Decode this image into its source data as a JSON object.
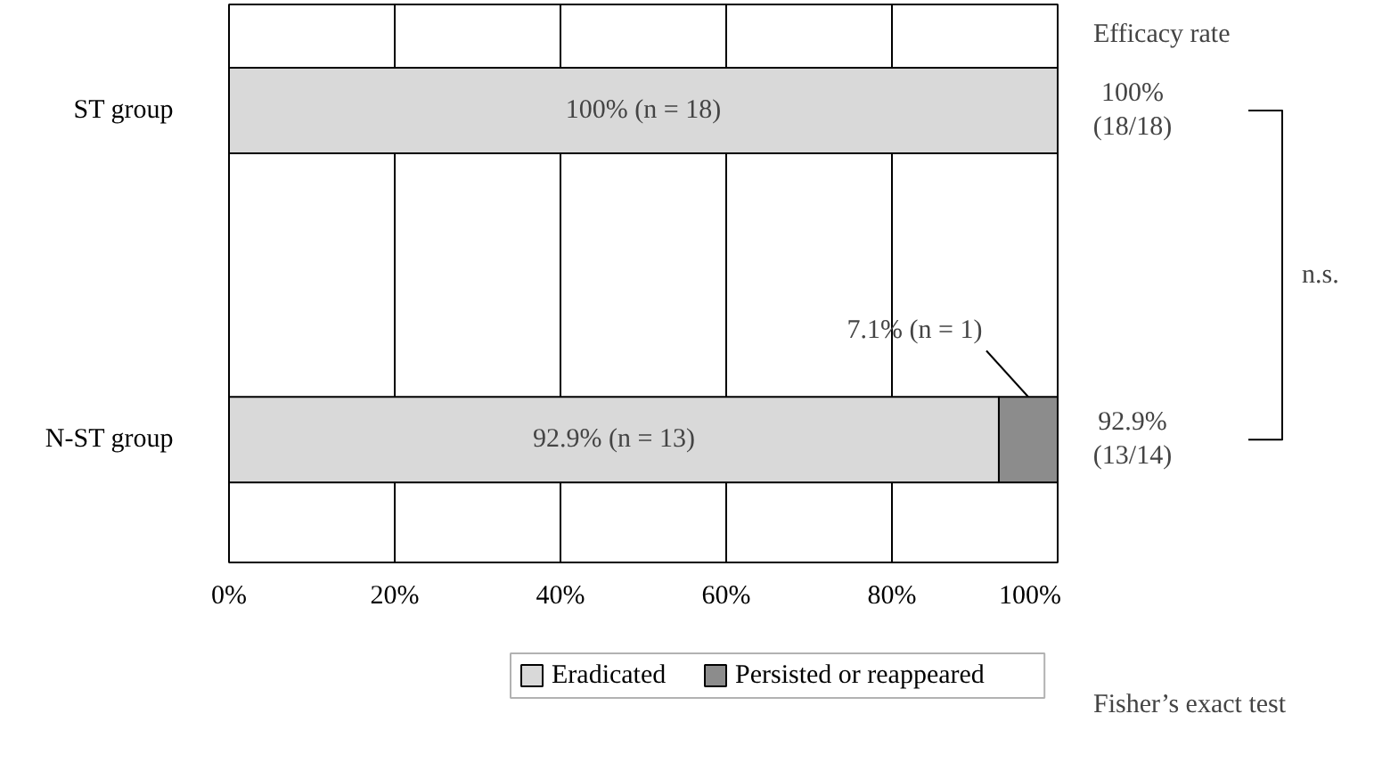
{
  "chart_data": {
    "type": "bar",
    "orientation": "horizontal",
    "stacked": true,
    "categories": [
      "ST group",
      "N-ST group"
    ],
    "series": [
      {
        "name": "Eradicated",
        "color": "#d9d9d9",
        "values": [
          100,
          92.9
        ],
        "value_labels": [
          "100% (n = 18)",
          "92.9% (n = 13)"
        ]
      },
      {
        "name": "Persisted or reappeared",
        "color": "#8c8c8c",
        "values": [
          0,
          7.1
        ],
        "value_labels": [
          null,
          "7.1% (n = 1)"
        ]
      }
    ],
    "xlim": [
      0,
      100
    ],
    "xticks": [
      {
        "value": 0,
        "label": "0%"
      },
      {
        "value": 20,
        "label": "20%"
      },
      {
        "value": 40,
        "label": "40%"
      },
      {
        "value": 60,
        "label": "60%"
      },
      {
        "value": 80,
        "label": "80%"
      },
      {
        "value": 100,
        "label": "100%"
      }
    ],
    "grid": "x",
    "legend": "bottom",
    "annotations": [
      "Efficacy rate",
      "100%\n(18/18)",
      "92.9%\n(13/14)",
      "n.s.",
      "Fisher’s exact test"
    ]
  }
}
